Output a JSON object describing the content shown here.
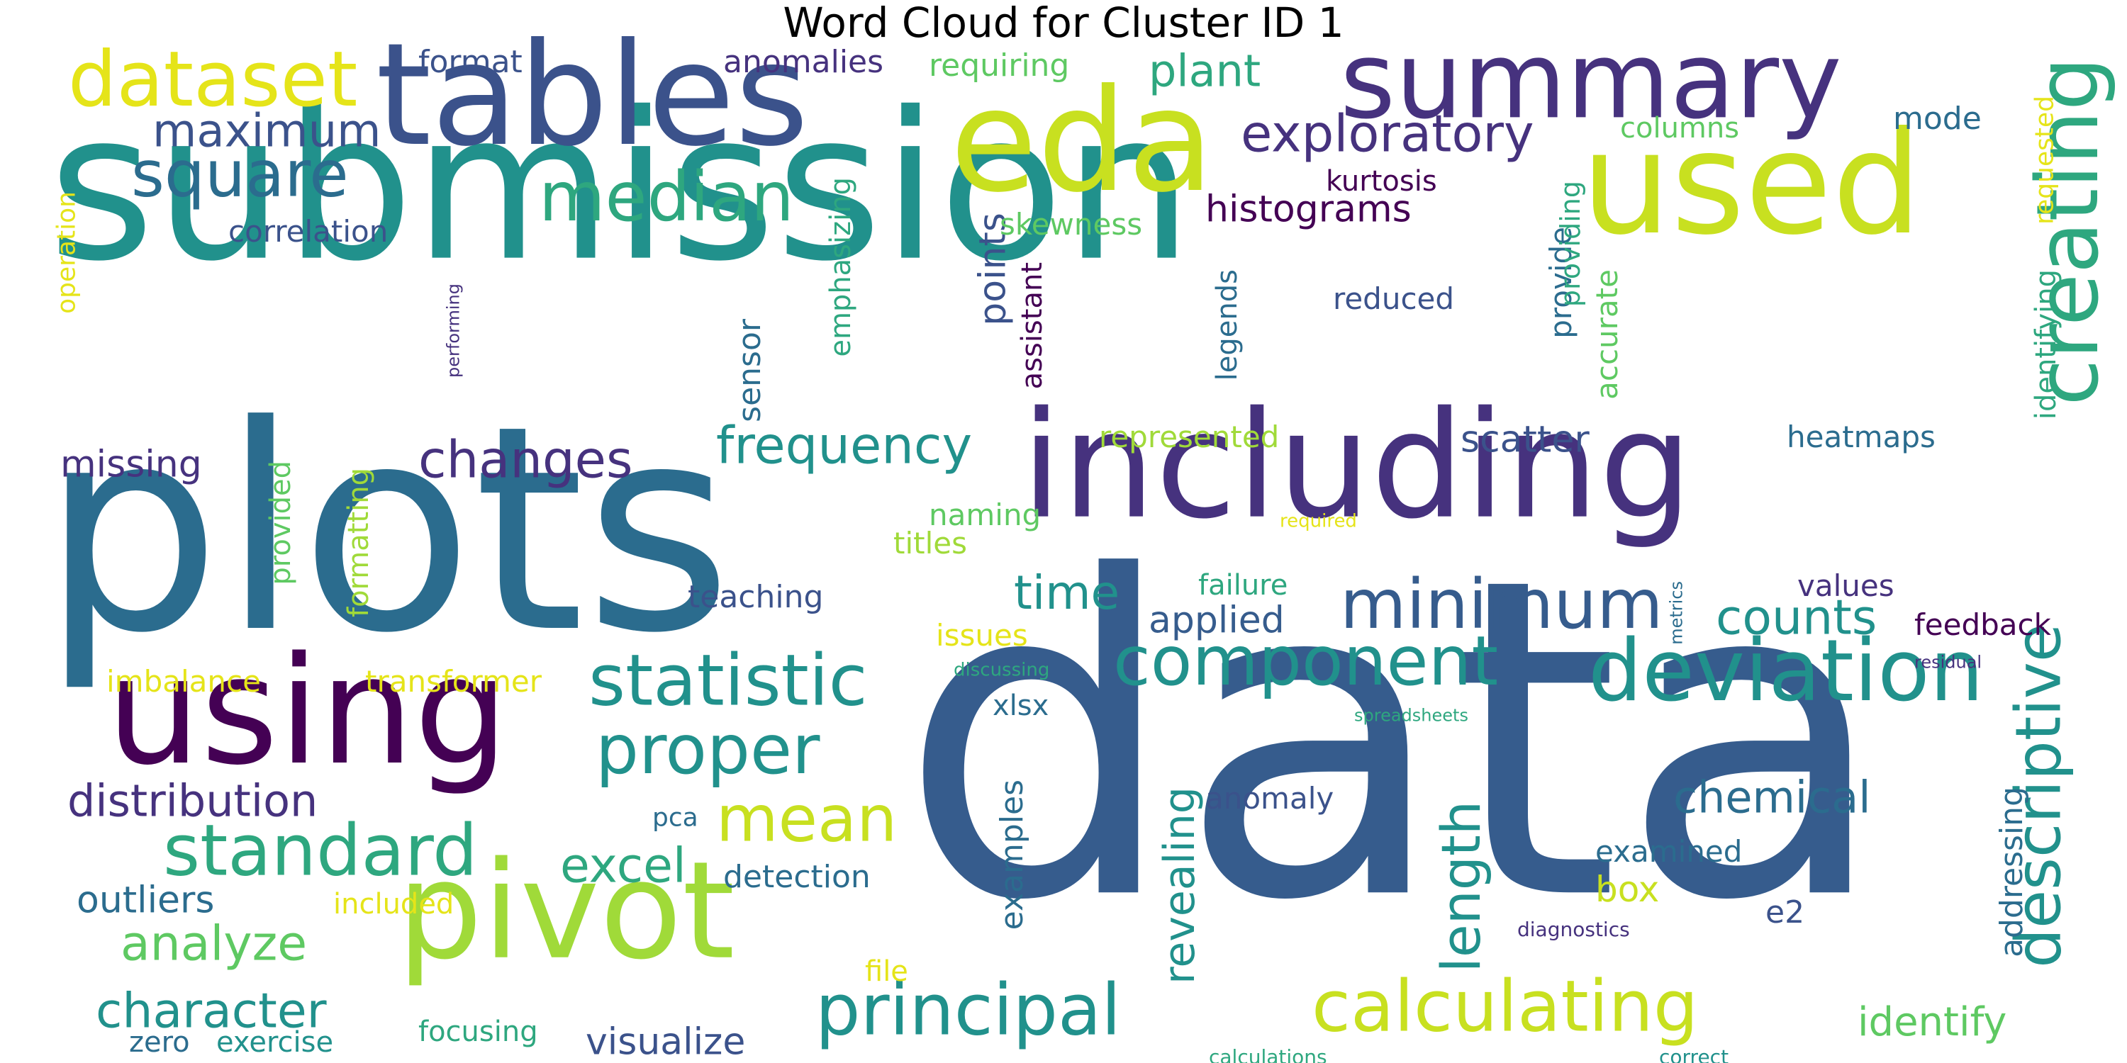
{
  "title": "Word Cloud for Cluster ID 1",
  "palette": {
    "dark_purple": "#440154",
    "indigo": "#46327e",
    "slate_blue": "#365c8d",
    "steel_blue": "#2b6c8e",
    "teal": "#21918c",
    "sea_green": "#2ea77f",
    "green": "#5ec962",
    "lime": "#a0da39",
    "yellow_green": "#c8e020",
    "yellow": "#e5e419"
  },
  "words": [
    {
      "text": "submission",
      "color": "#21918c"
    },
    {
      "text": "data",
      "color": "#365c8d"
    },
    {
      "text": "plots",
      "color": "#2b6c8e"
    },
    {
      "text": "including",
      "color": "#46327e"
    },
    {
      "text": "tables",
      "color": "#3b528b"
    },
    {
      "text": "eda",
      "color": "#c8e020"
    },
    {
      "text": "used",
      "color": "#c8e020"
    },
    {
      "text": "summary",
      "color": "#46327e"
    },
    {
      "text": "using",
      "color": "#440154"
    },
    {
      "text": "pivot",
      "color": "#a0da39"
    },
    {
      "text": "dataset",
      "color": "#e5e419"
    },
    {
      "text": "creating",
      "color": "#2ea77f"
    },
    {
      "text": "deviation",
      "color": "#21918c"
    },
    {
      "text": "statistic",
      "color": "#21918c"
    },
    {
      "text": "component",
      "color": "#21918c"
    },
    {
      "text": "minimum",
      "color": "#365c8d"
    },
    {
      "text": "median",
      "color": "#2ea77f"
    },
    {
      "text": "calculating",
      "color": "#c8e020"
    },
    {
      "text": "principal",
      "color": "#21918c"
    },
    {
      "text": "standard",
      "color": "#2ea77f"
    },
    {
      "text": "proper",
      "color": "#21918c"
    },
    {
      "text": "mean",
      "color": "#c8e020"
    },
    {
      "text": "square",
      "color": "#2b6c8e"
    },
    {
      "text": "exploratory",
      "color": "#46327e"
    },
    {
      "text": "frequency",
      "color": "#21918c"
    },
    {
      "text": "descriptive",
      "color": "#21918c"
    },
    {
      "text": "changes",
      "color": "#46327e"
    },
    {
      "text": "maximum",
      "color": "#3b528b"
    },
    {
      "text": "plant",
      "color": "#2ea77f"
    },
    {
      "text": "time",
      "color": "#21918c"
    },
    {
      "text": "counts",
      "color": "#21918c"
    },
    {
      "text": "length",
      "color": "#21918c"
    },
    {
      "text": "excel",
      "color": "#2ea77f"
    },
    {
      "text": "character",
      "color": "#21918c"
    },
    {
      "text": "analyze",
      "color": "#5ec962"
    },
    {
      "text": "distribution",
      "color": "#46327e"
    },
    {
      "text": "chemical",
      "color": "#2b6c8e"
    },
    {
      "text": "identify",
      "color": "#5ec962"
    },
    {
      "text": "histograms",
      "color": "#440154"
    },
    {
      "text": "scatter",
      "color": "#3b528b"
    },
    {
      "text": "applied",
      "color": "#365c8d"
    },
    {
      "text": "missing",
      "color": "#46327e"
    },
    {
      "text": "revealing",
      "color": "#21918c"
    },
    {
      "text": "points",
      "color": "#3b528b"
    },
    {
      "text": "outliers",
      "color": "#2b6c8e"
    },
    {
      "text": "visualize",
      "color": "#3b528b"
    },
    {
      "text": "box",
      "color": "#c8e020"
    },
    {
      "text": "format",
      "color": "#3b528b"
    },
    {
      "text": "anomalies",
      "color": "#46327e"
    },
    {
      "text": "requiring",
      "color": "#5ec962"
    },
    {
      "text": "columns",
      "color": "#5ec962"
    },
    {
      "text": "mode",
      "color": "#2b6c8e"
    },
    {
      "text": "kurtosis",
      "color": "#440154"
    },
    {
      "text": "correlation",
      "color": "#3b528b"
    },
    {
      "text": "skewness",
      "color": "#5ec962"
    },
    {
      "text": "reduced",
      "color": "#3b528b"
    },
    {
      "text": "heatmaps",
      "color": "#2b6c8e"
    },
    {
      "text": "represented",
      "color": "#a0da39"
    },
    {
      "text": "naming",
      "color": "#5ec962"
    },
    {
      "text": "titles",
      "color": "#a0da39"
    },
    {
      "text": "teaching",
      "color": "#3b528b"
    },
    {
      "text": "failure",
      "color": "#2ea77f"
    },
    {
      "text": "values",
      "color": "#46327e"
    },
    {
      "text": "feedback",
      "color": "#440154"
    },
    {
      "text": "issues",
      "color": "#e5e419"
    },
    {
      "text": "imbalance",
      "color": "#e5e419"
    },
    {
      "text": "transformer",
      "color": "#e5e419"
    },
    {
      "text": "xlsx",
      "color": "#2b6c8e"
    },
    {
      "text": "pca",
      "color": "#2b6c8e"
    },
    {
      "text": "anomaly",
      "color": "#3b528b"
    },
    {
      "text": "examined",
      "color": "#2b6c8e"
    },
    {
      "text": "detection",
      "color": "#2b6c8e"
    },
    {
      "text": "included",
      "color": "#e5e419"
    },
    {
      "text": "file",
      "color": "#e5e419"
    },
    {
      "text": "zero",
      "color": "#2b6c8e"
    },
    {
      "text": "exercise",
      "color": "#21918c"
    },
    {
      "text": "focusing",
      "color": "#2ea77f"
    },
    {
      "text": "e2",
      "color": "#3b528b"
    },
    {
      "text": "operation",
      "color": "#e5e419"
    },
    {
      "text": "performing",
      "color": "#46327e"
    },
    {
      "text": "sensor",
      "color": "#2b6c8e"
    },
    {
      "text": "emphasizing",
      "color": "#2ea77f"
    },
    {
      "text": "assistant",
      "color": "#440154"
    },
    {
      "text": "legends",
      "color": "#2b6c8e"
    },
    {
      "text": "provide",
      "color": "#2b6c8e"
    },
    {
      "text": "accurate",
      "color": "#5ec962"
    },
    {
      "text": "providing",
      "color": "#2ea77f"
    },
    {
      "text": "requested",
      "color": "#e5e419"
    },
    {
      "text": "identifying",
      "color": "#2ea77f"
    },
    {
      "text": "provided",
      "color": "#5ec962"
    },
    {
      "text": "formatting",
      "color": "#a0da39"
    },
    {
      "text": "examples",
      "color": "#2b6c8e"
    },
    {
      "text": "addressing",
      "color": "#2b6c8e"
    },
    {
      "text": "required",
      "color": "#e5e419"
    },
    {
      "text": "discussing",
      "color": "#2ea77f"
    },
    {
      "text": "metrics",
      "color": "#2b6c8e"
    },
    {
      "text": "spreadsheets",
      "color": "#2ea77f"
    },
    {
      "text": "residual",
      "color": "#46327e"
    },
    {
      "text": "diagnostics",
      "color": "#46327e"
    },
    {
      "text": "calculations",
      "color": "#2ea77f"
    },
    {
      "text": "correct",
      "color": "#21918c"
    }
  ]
}
